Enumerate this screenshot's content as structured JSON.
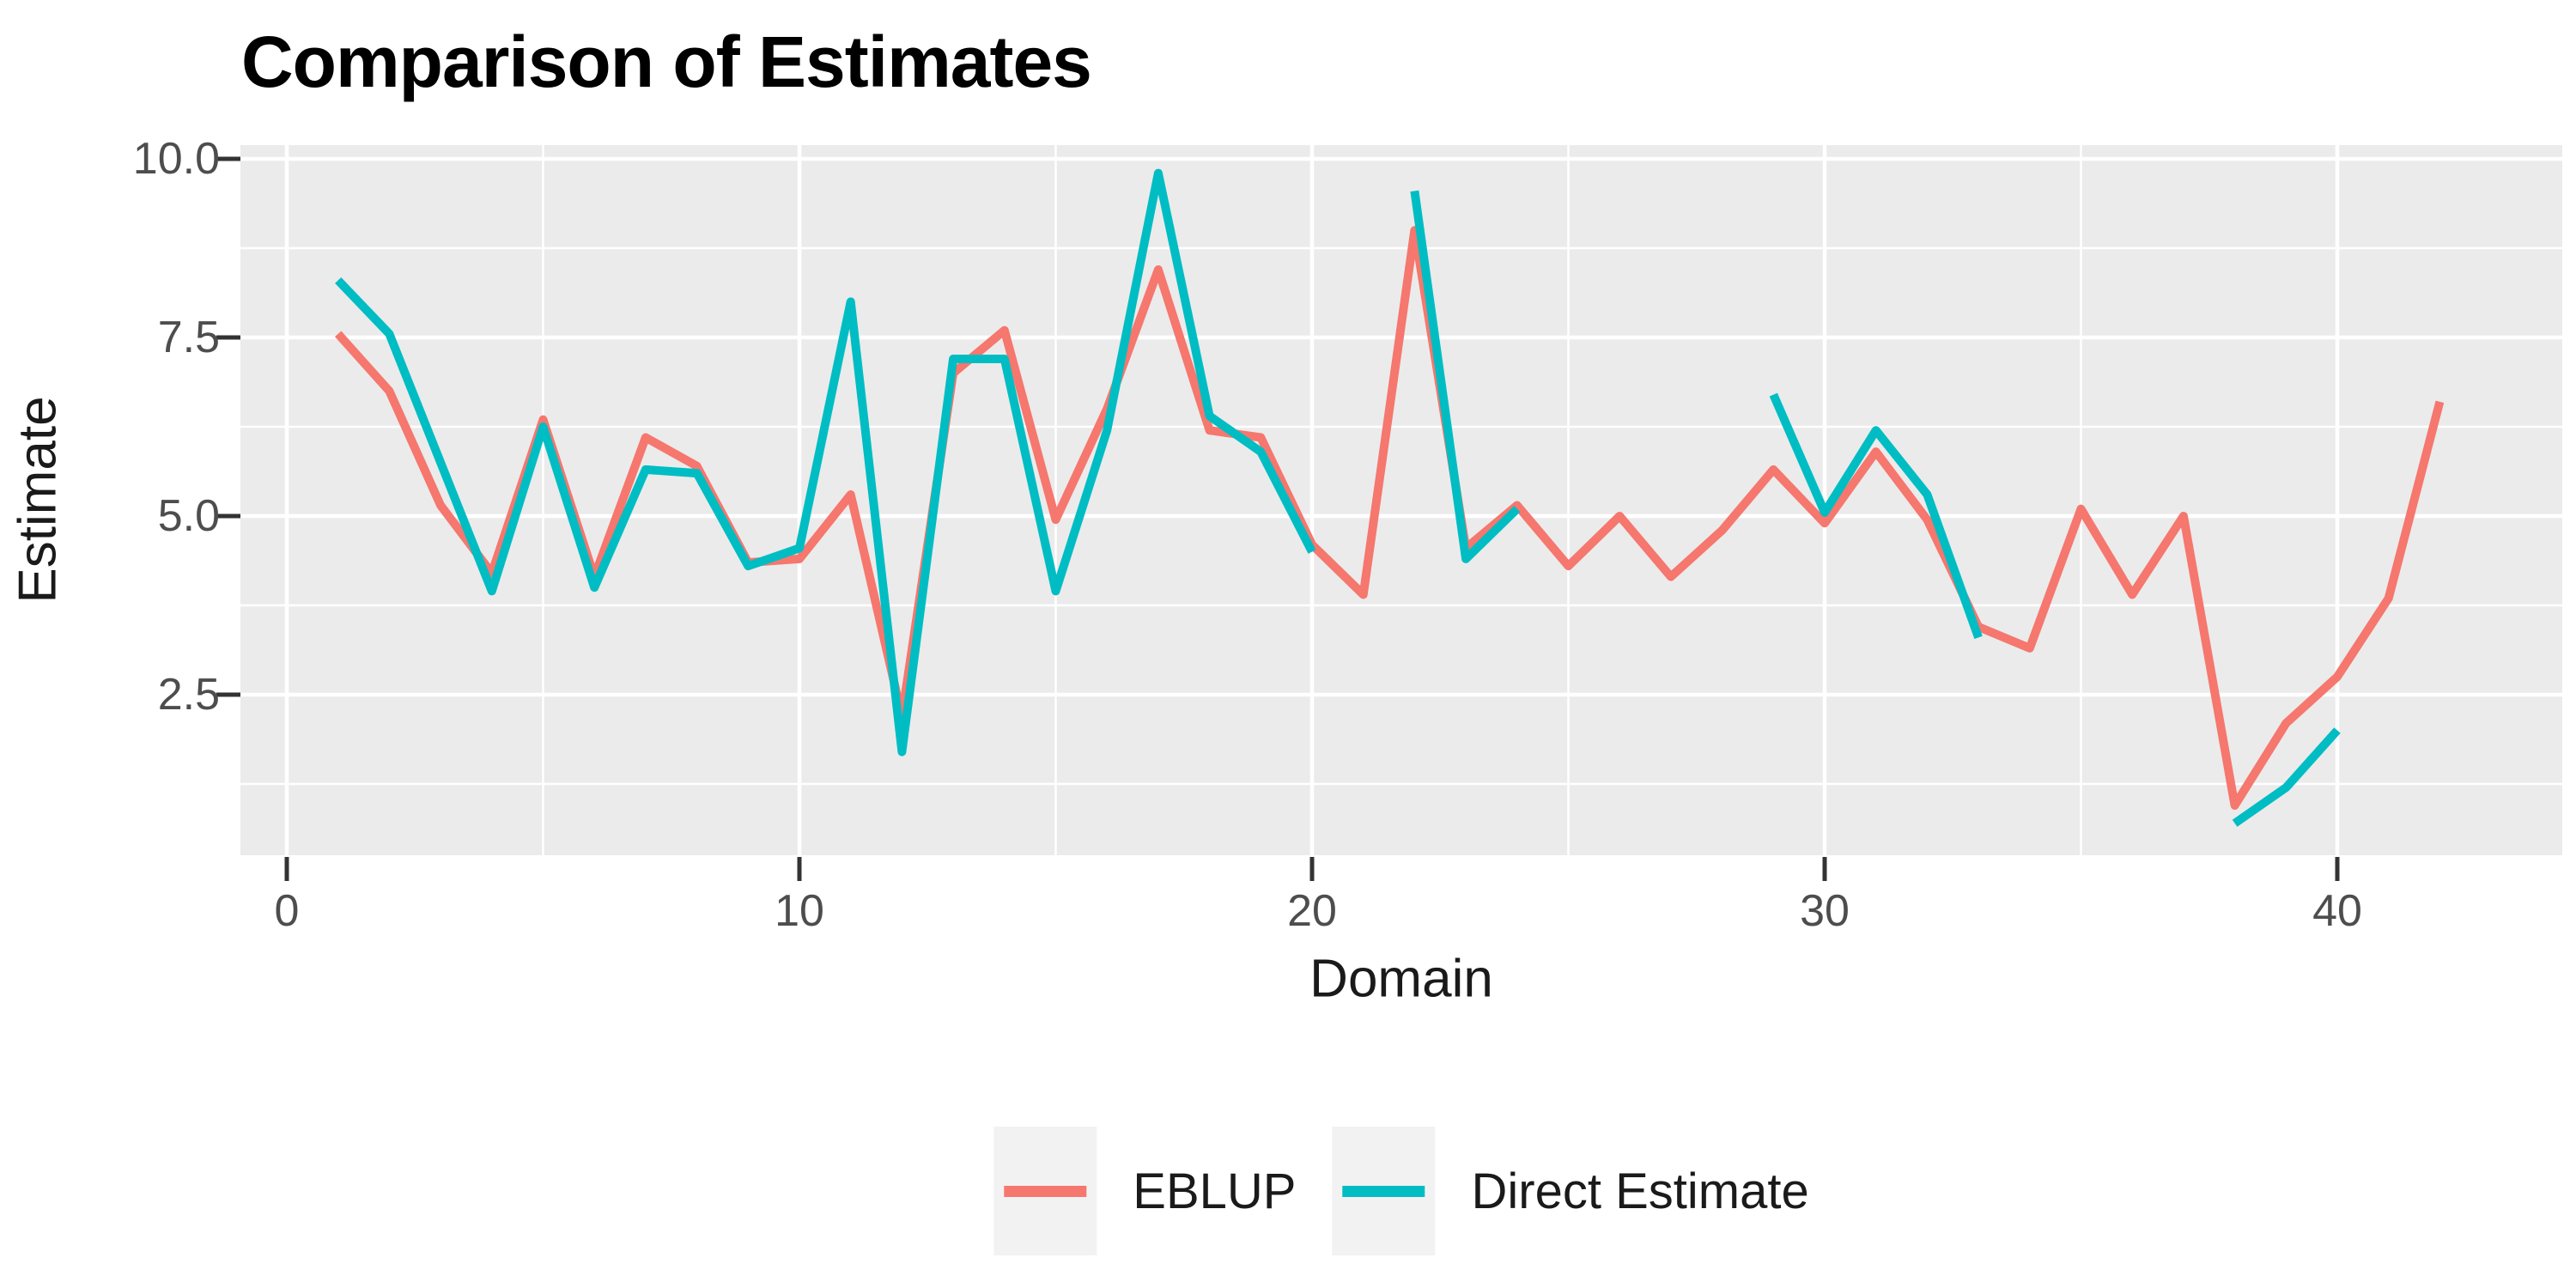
{
  "title": "Comparison of Estimates",
  "axes": {
    "x": {
      "label": "Domain",
      "tick_labels": [
        "0",
        "10",
        "20",
        "30",
        "40"
      ],
      "tick_values": [
        0,
        10,
        20,
        30,
        40
      ],
      "minor_tick_values": [
        5,
        15,
        25,
        35
      ]
    },
    "y": {
      "label": "Estimate",
      "tick_labels": [
        "10.0",
        "7.5",
        "5.0",
        "2.5"
      ],
      "tick_values": [
        10,
        7.5,
        5,
        2.5
      ],
      "minor_tick_values": [
        8.75,
        6.25,
        3.75,
        1.25
      ]
    }
  },
  "legend": {
    "items": [
      {
        "label": "EBLUP",
        "color": "#F5776E"
      },
      {
        "label": "Direct Estimate",
        "color": "#00BDC3"
      }
    ]
  },
  "colors": {
    "page_bg": "#FFFFFF",
    "panel_bg": "#EBEBEB",
    "grid": "#FFFFFF",
    "tick_mark": "#333333",
    "tick_label": "#4D4D4D",
    "axis_title": "#1A1A1A",
    "title": "#000000",
    "legend_key_bg": "#F2F2F2",
    "eblup": "#F5776E",
    "direct_estimate": "#00BDC3"
  },
  "chart_data": {
    "type": "line",
    "title": "Comparison of Estimates",
    "xlabel": "Domain",
    "ylabel": "Estimate",
    "xlim": [
      -0.9,
      44.4
    ],
    "ylim": [
      0.25,
      10.2
    ],
    "grid": true,
    "legend_position": "bottom",
    "x": [
      1,
      2,
      3,
      4,
      5,
      6,
      7,
      8,
      9,
      10,
      11,
      12,
      13,
      14,
      15,
      16,
      17,
      18,
      19,
      20,
      21,
      22,
      23,
      24,
      25,
      26,
      27,
      28,
      29,
      30,
      31,
      32,
      33,
      34,
      35,
      36,
      37,
      38,
      39,
      40,
      41,
      42
    ],
    "series": [
      {
        "name": "EBLUP",
        "color": "#F5776E",
        "values": [
          7.55,
          6.75,
          5.15,
          4.2,
          6.35,
          4.15,
          6.1,
          5.7,
          4.35,
          4.4,
          5.3,
          2.2,
          7.0,
          7.6,
          4.95,
          6.5,
          8.45,
          6.2,
          6.1,
          4.6,
          3.9,
          9.0,
          4.55,
          5.15,
          4.3,
          5.0,
          4.15,
          4.8,
          5.65,
          4.9,
          5.9,
          4.95,
          3.45,
          3.15,
          5.1,
          3.9,
          5.0,
          0.95,
          2.1,
          2.75,
          3.85,
          6.6
        ]
      },
      {
        "name": "Direct Estimate",
        "color": "#00BDC3",
        "values": [
          8.3,
          7.55,
          5.75,
          3.95,
          6.25,
          4.0,
          5.65,
          5.6,
          4.3,
          4.55,
          8.0,
          1.7,
          7.2,
          7.2,
          3.95,
          6.2,
          9.8,
          6.4,
          5.9,
          4.5,
          null,
          9.55,
          4.4,
          5.1,
          null,
          null,
          null,
          null,
          6.7,
          5.05,
          6.2,
          5.3,
          3.3,
          null,
          null,
          null,
          null,
          0.7,
          1.2,
          2.0,
          null,
          null
        ]
      }
    ]
  }
}
